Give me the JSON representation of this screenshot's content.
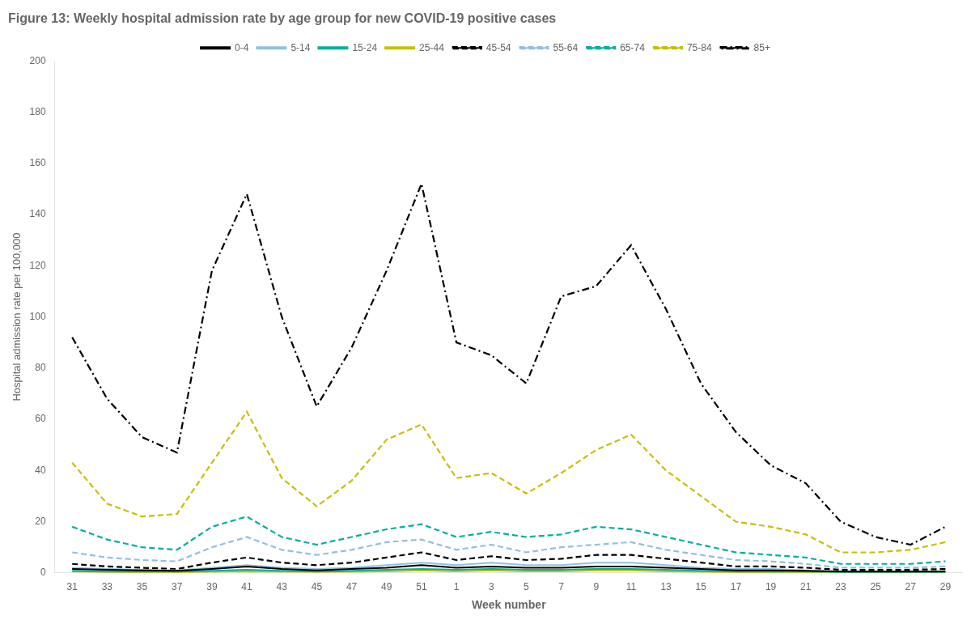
{
  "chart_data": {
    "type": "line",
    "title": "Figure 13: Weekly hospital admission rate by age group for new COVID-19 positive cases",
    "xlabel": "Week number",
    "ylabel": "Hospital admission rate per 100,000",
    "categories": [
      "31",
      "33",
      "35",
      "37",
      "39",
      "41",
      "43",
      "45",
      "47",
      "49",
      "51",
      "1",
      "3",
      "5",
      "7",
      "9",
      "11",
      "13",
      "15",
      "17",
      "19",
      "21",
      "23",
      "25",
      "27",
      "29"
    ],
    "series": [
      {
        "name": "0-4",
        "color": "#000000",
        "line_style": "solid",
        "values": [
          1.5,
          1.2,
          1.0,
          0.8,
          1.5,
          2.5,
          1.5,
          1.0,
          1.5,
          2.0,
          3.0,
          2.0,
          2.5,
          2.0,
          2.0,
          2.5,
          2.5,
          2.0,
          1.5,
          1.0,
          1.0,
          0.8,
          0.5,
          0.5,
          0.5,
          0.5
        ]
      },
      {
        "name": "5-14",
        "color": "#92c0e0",
        "line_style": "solid",
        "values": [
          2.0,
          1.5,
          1.2,
          1.0,
          2.0,
          3.0,
          2.0,
          1.5,
          2.0,
          3.0,
          4.0,
          3.0,
          4.0,
          3.0,
          3.0,
          4.0,
          4.0,
          3.0,
          2.0,
          1.5,
          1.5,
          1.0,
          0.6,
          0.6,
          0.6,
          0.6
        ]
      },
      {
        "name": "15-24",
        "color": "#00b0a0",
        "line_style": "solid",
        "values": [
          0.8,
          0.5,
          0.5,
          0.5,
          0.8,
          1.2,
          0.8,
          0.5,
          0.8,
          1.2,
          1.5,
          1.2,
          1.5,
          1.2,
          1.2,
          1.5,
          1.5,
          1.2,
          0.8,
          0.5,
          0.5,
          0.5,
          0.3,
          0.3,
          0.3,
          0.3
        ]
      },
      {
        "name": "25-44",
        "color": "#c8c000",
        "line_style": "solid",
        "values": [
          0.5,
          0.3,
          0.2,
          0.2,
          0.4,
          0.6,
          0.4,
          0.3,
          0.4,
          0.6,
          1.0,
          0.6,
          1.0,
          0.6,
          0.6,
          1.0,
          1.0,
          0.6,
          0.4,
          0.2,
          0.2,
          0.2,
          0.1,
          0.1,
          0.1,
          0.1
        ]
      },
      {
        "name": "45-54",
        "color": "#000000",
        "line_style": "dashed",
        "values": [
          3.5,
          2.5,
          2.0,
          1.5,
          4.0,
          6.0,
          4.0,
          3.0,
          4.0,
          6.0,
          8.0,
          5.0,
          6.5,
          5.0,
          5.5,
          7.0,
          7.0,
          5.5,
          4.0,
          2.5,
          2.5,
          2.0,
          1.2,
          1.2,
          1.2,
          1.5
        ]
      },
      {
        "name": "55-64",
        "color": "#92c0e0",
        "line_style": "dashed",
        "values": [
          8.0,
          6.0,
          5.0,
          4.5,
          10.0,
          14.0,
          9.0,
          7.0,
          9.0,
          12.0,
          13.0,
          9.0,
          11.0,
          8.0,
          10.0,
          11.0,
          12.0,
          9.0,
          7.0,
          5.0,
          4.5,
          3.5,
          2.0,
          2.0,
          2.0,
          2.5
        ]
      },
      {
        "name": "65-74",
        "color": "#00b0a0",
        "line_style": "dashed",
        "values": [
          18.0,
          13.0,
          10.0,
          9.0,
          18.0,
          22.0,
          14.0,
          11.0,
          14.0,
          17.0,
          19.0,
          14.0,
          16.0,
          14.0,
          15.0,
          18.0,
          17.0,
          14.0,
          11.0,
          8.0,
          7.0,
          6.0,
          3.5,
          3.5,
          3.5,
          4.5
        ]
      },
      {
        "name": "75-84",
        "color": "#c8c000",
        "line_style": "dashed",
        "values": [
          43.0,
          27.0,
          22.0,
          23.0,
          43.0,
          63.0,
          37.0,
          26.0,
          36.0,
          52.0,
          58.0,
          37.0,
          39.0,
          31.0,
          39.0,
          48.0,
          54.0,
          40.0,
          30.0,
          20.0,
          18.0,
          15.0,
          8.0,
          8.0,
          9.0,
          12.0
        ]
      },
      {
        "name": "85+",
        "color": "#000000",
        "line_style": "dashdot",
        "values": [
          92.0,
          68.0,
          53.0,
          47.0,
          118.0,
          148.0,
          100.0,
          65.0,
          88.0,
          118.0,
          152.0,
          90.0,
          85.0,
          74.0,
          108.0,
          112.0,
          128.0,
          103.0,
          74.0,
          55.0,
          42.0,
          35.0,
          20.0,
          14.0,
          11.0,
          18.0
        ]
      }
    ],
    "ylim": [
      0,
      200
    ],
    "yticks": [
      0,
      20,
      40,
      60,
      80,
      100,
      120,
      140,
      160,
      180,
      200
    ],
    "grid": false,
    "legend": "top"
  }
}
